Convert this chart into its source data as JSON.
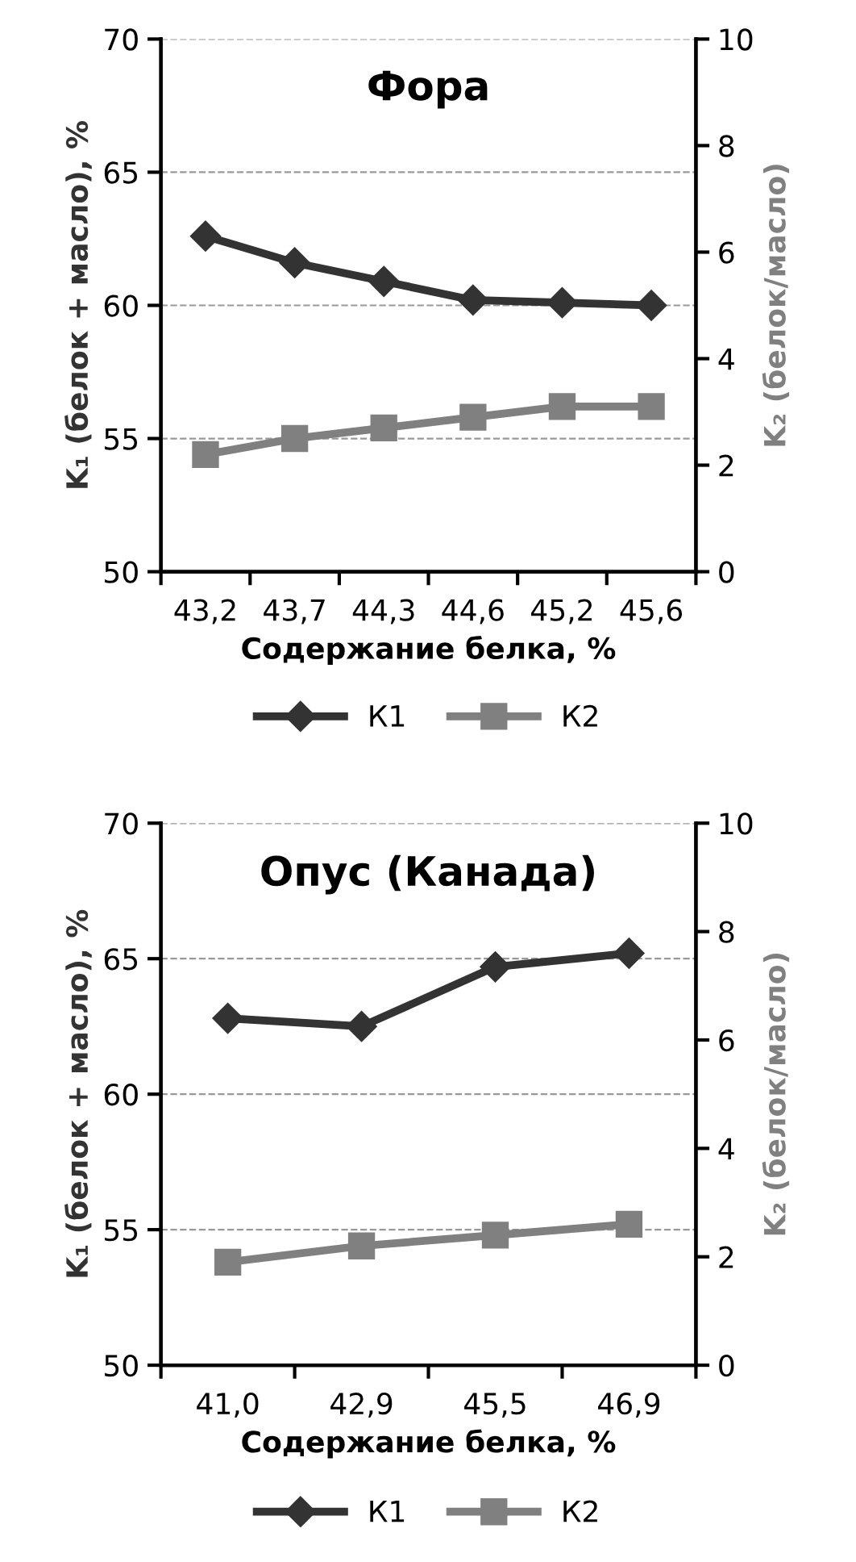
{
  "chart_data": [
    {
      "type": "line",
      "title": "Фора",
      "xlabel": "Содержание белка, %",
      "ylabel": "K₁ (белок + масло), %",
      "y2label": "K₂ (белок/масло)",
      "categories": [
        "43,2",
        "43,7",
        "44,3",
        "44,6",
        "45,2",
        "45,6"
      ],
      "series": [
        {
          "name": "К1",
          "color": "#333333",
          "marker": "diamond",
          "values": [
            62.6,
            61.6,
            60.9,
            60.2,
            60.1,
            60.0
          ]
        },
        {
          "name": "К2",
          "color": "#808080",
          "marker": "square",
          "axis": "y2",
          "values": [
            2.2,
            2.5,
            2.7,
            2.9,
            3.1,
            3.1
          ]
        }
      ],
      "ylim": [
        50,
        70
      ],
      "yticks": [
        50,
        55,
        60,
        65,
        70
      ],
      "y2lim": [
        0,
        10
      ],
      "y2ticks": [
        0,
        2,
        4,
        6,
        8,
        10
      ],
      "grid": "y",
      "legend": "bottom",
      "line_style": "solid"
    },
    {
      "type": "line",
      "title": "Опус (Канада)",
      "xlabel": "Содержание белка, %",
      "ylabel": "K₁ (белок + масло), %",
      "y2label": "K₂ (белок/масло)",
      "categories": [
        "41,0",
        "42,9",
        "45,5",
        "46,9"
      ],
      "series": [
        {
          "name": "К1",
          "color": "#333333",
          "marker": "diamond",
          "values": [
            62.8,
            62.5,
            64.7,
            65.2
          ]
        },
        {
          "name": "К2",
          "color": "#808080",
          "marker": "square",
          "axis": "y2",
          "values": [
            1.9,
            2.2,
            2.4,
            2.6
          ]
        }
      ],
      "ylim": [
        50,
        70
      ],
      "yticks": [
        50,
        55,
        60,
        65,
        70
      ],
      "y2lim": [
        0,
        10
      ],
      "y2ticks": [
        0,
        2,
        4,
        6,
        8,
        10
      ],
      "grid": "y",
      "legend": "bottom",
      "line_style": "solid"
    }
  ]
}
